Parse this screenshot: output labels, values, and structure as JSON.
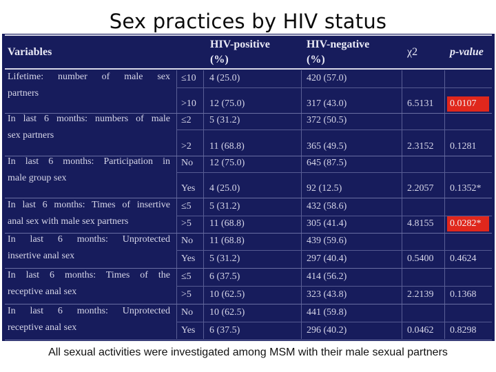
{
  "title": "Sex practices by HIV status",
  "headers": {
    "variables": "Variables",
    "pos_line1": "HIV-positive",
    "pos_line2": "(%)",
    "neg_line1": "HIV-negative",
    "neg_line2": "(%)",
    "chi": "χ2",
    "p": "p-value"
  },
  "groups": [
    {
      "label1": "Lifetime: number of male sex",
      "label2": "partners",
      "rows": [
        {
          "cat": "≤10",
          "pos": "4 (25.0)",
          "neg": "420 (57.0)",
          "chi": "",
          "p": "",
          "highlight": false
        },
        {
          "cat": ">10",
          "pos": "12 (75.0)",
          "neg": "317 (43.0)",
          "chi": "6.5131",
          "p": "0.0107",
          "highlight": true
        }
      ]
    },
    {
      "label1": "In last 6 months: numbers of male",
      "label2": "sex partners",
      "rows": [
        {
          "cat": "≤2",
          "pos": "5 (31.2)",
          "neg": "372 (50.5)",
          "chi": "",
          "p": "",
          "highlight": false
        },
        {
          "cat": ">2",
          "pos": "11 (68.8)",
          "neg": "365 (49.5)",
          "chi": "2.3152",
          "p": "0.1281",
          "highlight": false
        }
      ]
    },
    {
      "label1": "In last 6 months: Participation in",
      "label2": "male group sex",
      "rows": [
        {
          "cat": "No",
          "pos": "12 (75.0)",
          "neg": "645 (87.5)",
          "chi": "",
          "p": "",
          "highlight": false
        },
        {
          "cat": "Yes",
          "pos": "4 (25.0)",
          "neg": "92 (12.5)",
          "chi": "2.2057",
          "p": "0.1352*",
          "highlight": false
        }
      ]
    },
    {
      "label1": "In last 6 months: Times of insertive",
      "label2": "anal sex with male sex partners",
      "rows": [
        {
          "cat": "≤5",
          "pos": "5 (31.2)",
          "neg": "432 (58.6)",
          "chi": "",
          "p": "",
          "highlight": false
        },
        {
          "cat": ">5",
          "pos": "11 (68.8)",
          "neg": "305 (41.4)",
          "chi": "4.8155",
          "p": "0.0282*",
          "highlight": true
        }
      ]
    },
    {
      "label1": "In last 6 months: Unprotected",
      "label2": "insertive anal sex",
      "rows": [
        {
          "cat": "No",
          "pos": "11 (68.8)",
          "neg": "439 (59.6)",
          "chi": "",
          "p": "",
          "highlight": false
        },
        {
          "cat": "Yes",
          "pos": "5 (31.2)",
          "neg": "297 (40.4)",
          "chi": "0.5400",
          "p": "0.4624",
          "highlight": false
        }
      ]
    },
    {
      "label1": "In last 6 months: Times of the",
      "label2": "receptive anal sex",
      "rows": [
        {
          "cat": "≤5",
          "pos": "6 (37.5)",
          "neg": "414 (56.2)",
          "chi": "",
          "p": "",
          "highlight": false
        },
        {
          "cat": ">5",
          "pos": "10 (62.5)",
          "neg": "323 (43.8)",
          "chi": "2.2139",
          "p": "0.1368",
          "highlight": false
        }
      ]
    },
    {
      "label1": "In last 6 months: Unprotected",
      "label2": "receptive anal sex",
      "rows": [
        {
          "cat": "No",
          "pos": "10 (62.5)",
          "neg": "441 (59.8)",
          "chi": "",
          "p": "",
          "highlight": false
        },
        {
          "cat": "Yes",
          "pos": "6 (37.5)",
          "neg": "296 (40.2)",
          "chi": "0.0462",
          "p": "0.8298",
          "highlight": false
        }
      ]
    }
  ],
  "footer": "All sexual activities were investigated among MSM with their male sexual partners",
  "colors": {
    "panel": "#171c5c",
    "text": "#d6d6e8",
    "highlight": "#e0271c"
  }
}
